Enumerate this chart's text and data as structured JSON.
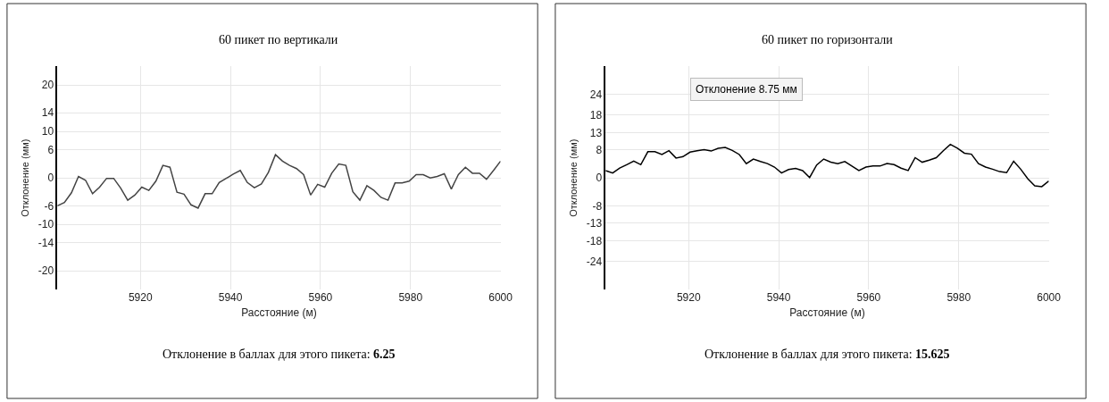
{
  "chart_data": [
    {
      "type": "line",
      "title": "60 пикет по вертикали",
      "xlabel": "Расстояние (м)",
      "ylabel": "Отклонение (мм)",
      "x": [
        5901.5625,
        5903.125,
        5904.6875,
        5906.25,
        5907.8125,
        5909.375,
        5910.9375,
        5912.5,
        5914.0625,
        5915.625,
        5917.1875,
        5918.75,
        5920.3125,
        5921.875,
        5923.4375,
        5925,
        5926.5625,
        5928.125,
        5929.6875,
        5931.25,
        5932.8125,
        5934.375,
        5935.9375,
        5937.5,
        5939.0625,
        5940.625,
        5942.1875,
        5943.75,
        5945.3125,
        5946.875,
        5948.4375,
        5950,
        5951.5625,
        5953.125,
        5954.6875,
        5956.25,
        5957.8125,
        5959.375,
        5960.9375,
        5962.5,
        5964.0625,
        5965.625,
        5967.1875,
        5968.75,
        5970.3125,
        5971.875,
        5973.4375,
        5975,
        5976.5625,
        5978.125,
        5979.6875,
        5981.25,
        5982.8125,
        5984.375,
        5985.9375,
        5987.5,
        5989.0625,
        5990.625,
        5992.1875,
        5993.75,
        5995.3125,
        5996.875,
        5998.4375,
        6000
      ],
      "series": [
        {
          "color": "#444444",
          "values": [
            -6,
            -5.3,
            -3.2,
            0.3,
            -0.5,
            -3.4,
            -2,
            -0.1,
            -0.1,
            -2.2,
            -4.8,
            -3.7,
            -2,
            -2.7,
            -0.7,
            2.7,
            2.3,
            -3.1,
            -3.5,
            -5.8,
            -6.5,
            -3.4,
            -3.4,
            -1,
            -0.1,
            0.8,
            1.6,
            -1,
            -2.1,
            -1.3,
            1.2,
            5,
            3.6,
            2.7,
            2,
            0.7,
            -3.7,
            -1.4,
            -2,
            1,
            3,
            2.7,
            -3,
            -4.8,
            -1.7,
            -2.7,
            -4.2,
            -4.8,
            -1.1,
            -1.1,
            -0.7,
            0.7,
            0.7,
            0,
            0.3,
            0.9,
            -2.4,
            0.7,
            2.3,
            1,
            1,
            -0.3,
            1.6,
            3.6
          ]
        }
      ],
      "xlim": [
        5901.5625,
        6000
      ],
      "xticks": [
        5920,
        5940,
        5960,
        5980,
        6000
      ],
      "ylim": [
        -24,
        24
      ],
      "yticks": [
        -20,
        -14,
        -10,
        -6,
        0,
        6,
        10,
        14,
        20
      ],
      "grid": true,
      "marker": "none",
      "line_style": "solid",
      "annotations": [
        "Отклонение в баллах для этого пикета: 6.25"
      ]
    },
    {
      "type": "line",
      "title": "60 пикет по горизонтали",
      "xlabel": "Расстояние (м)",
      "ylabel": "Отклонение (мм)",
      "x": [
        5901.5625,
        5903.125,
        5904.6875,
        5906.25,
        5907.8125,
        5909.375,
        5910.9375,
        5912.5,
        5914.0625,
        5915.625,
        5917.1875,
        5918.75,
        5920.3125,
        5921.875,
        5923.4375,
        5925,
        5926.5625,
        5928.125,
        5929.6875,
        5931.25,
        5932.8125,
        5934.375,
        5935.9375,
        5937.5,
        5939.0625,
        5940.625,
        5942.1875,
        5943.75,
        5945.3125,
        5946.875,
        5948.4375,
        5950,
        5951.5625,
        5953.125,
        5954.6875,
        5956.25,
        5957.8125,
        5959.375,
        5960.9375,
        5962.5,
        5964.0625,
        5965.625,
        5967.1875,
        5968.75,
        5970.3125,
        5971.875,
        5973.4375,
        5975,
        5976.5625,
        5978.125,
        5979.6875,
        5981.25,
        5982.8125,
        5984.375,
        5985.9375,
        5987.5,
        5989.0625,
        5990.625,
        5992.1875,
        5993.75,
        5995.3125,
        5996.875,
        5998.4375,
        6000
      ],
      "series": [
        {
          "color": "#000000",
          "values": [
            2.1,
            1.4,
            2.8,
            3.8,
            4.8,
            3.8,
            7.5,
            7.5,
            6.7,
            7.8,
            5.7,
            6.1,
            7.4,
            7.8,
            8.1,
            7.7,
            8.5,
            8.75,
            7.9,
            6.7,
            4.1,
            5.4,
            4.7,
            4.1,
            3.1,
            1.4,
            2.4,
            2.7,
            2.1,
            0.1,
            3.7,
            5.4,
            4.5,
            4.1,
            4.7,
            3.4,
            2.1,
            3.1,
            3.4,
            3.4,
            4.1,
            3.8,
            2.8,
            2.1,
            5.8,
            4.5,
            5.1,
            5.8,
            7.8,
            9.6,
            8.5,
            7.1,
            6.8,
            4.1,
            3.1,
            2.5,
            1.8,
            1.5,
            4.8,
            2.5,
            -0.2,
            -2.3,
            -2.5,
            -0.9
          ]
        }
      ],
      "xlim": [
        5901.5625,
        6000
      ],
      "xticks": [
        5920,
        5940,
        5960,
        5980,
        6000
      ],
      "ylim": [
        -32,
        32
      ],
      "yticks": [
        -24,
        -18,
        -13,
        -8,
        0,
        8,
        13,
        18,
        24
      ],
      "grid": true,
      "marker": "none",
      "line_style": "solid",
      "annotations": [
        "Отклонение в баллах для этого пикета: 15.625",
        "Отклонение 8.75 мм"
      ]
    }
  ]
}
